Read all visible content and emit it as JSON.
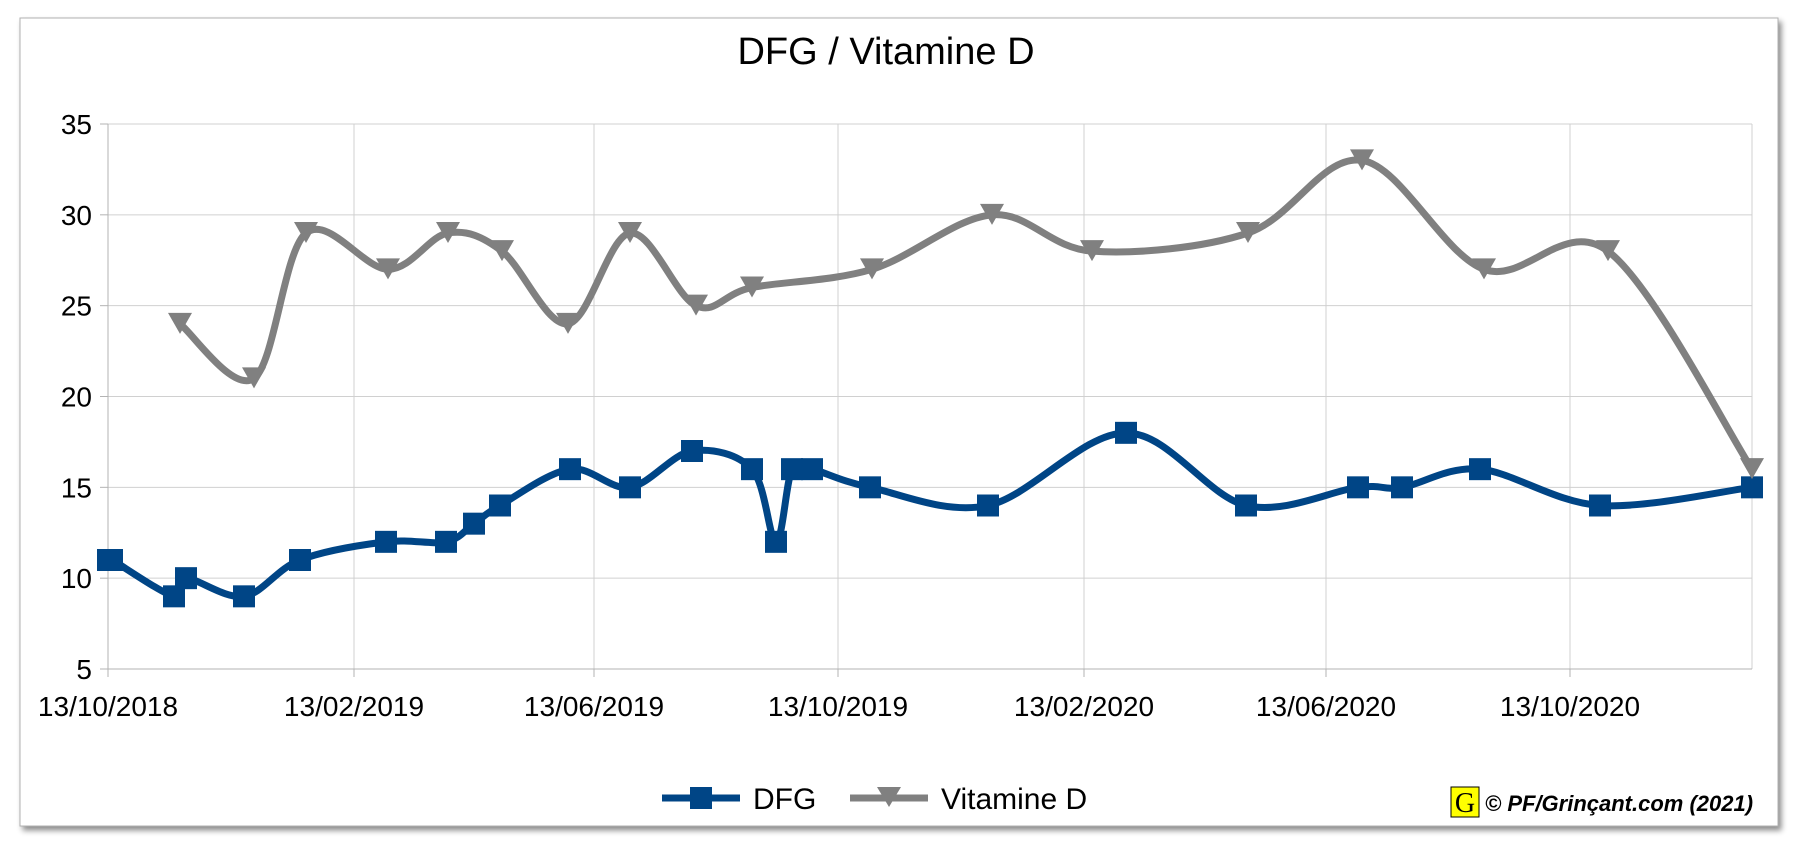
{
  "chart_data": {
    "type": "line",
    "title": "DFG / Vitamine D",
    "xlabel": "",
    "ylabel": "",
    "ylim": [
      5,
      35
    ],
    "yticks": [
      5,
      10,
      15,
      20,
      25,
      30,
      35
    ],
    "xlim": [
      "2018-10-13",
      "2021-01-12"
    ],
    "xticks": [
      "13/10/2018",
      "13/02/2019",
      "13/06/2019",
      "13/10/2019",
      "13/02/2020",
      "13/06/2020",
      "13/10/2020"
    ],
    "xtick_dates": [
      "2018-10-13",
      "2019-02-13",
      "2019-06-13",
      "2019-10-13",
      "2020-02-13",
      "2020-06-13",
      "2020-10-13"
    ],
    "grid": true,
    "smooth": true,
    "legend_position": "bottom-center",
    "series": [
      {
        "name": "DFG",
        "color": "#004586",
        "marker": "square",
        "points": [
          {
            "x": "2018-10-13",
            "y": 11
          },
          {
            "x": "2018-10-15",
            "y": 11
          },
          {
            "x": "2018-11-15",
            "y": 9
          },
          {
            "x": "2018-11-21",
            "y": 10
          },
          {
            "x": "2018-12-20",
            "y": 9
          },
          {
            "x": "2019-01-17",
            "y": 11
          },
          {
            "x": "2019-03-01",
            "y": 12
          },
          {
            "x": "2019-03-31",
            "y": 12
          },
          {
            "x": "2019-04-14",
            "y": 13
          },
          {
            "x": "2019-04-27",
            "y": 14
          },
          {
            "x": "2019-06-01",
            "y": 16
          },
          {
            "x": "2019-07-01",
            "y": 15
          },
          {
            "x": "2019-08-01",
            "y": 17
          },
          {
            "x": "2019-08-31",
            "y": 16
          },
          {
            "x": "2019-09-12",
            "y": 12
          },
          {
            "x": "2019-09-20",
            "y": 16
          },
          {
            "x": "2019-09-30",
            "y": 16
          },
          {
            "x": "2019-10-29",
            "y": 15
          },
          {
            "x": "2019-12-27",
            "y": 14
          },
          {
            "x": "2020-03-05",
            "y": 18
          },
          {
            "x": "2020-05-04",
            "y": 14
          },
          {
            "x": "2020-06-29",
            "y": 15
          },
          {
            "x": "2020-07-21",
            "y": 15
          },
          {
            "x": "2020-08-29",
            "y": 16
          },
          {
            "x": "2020-10-28",
            "y": 14
          },
          {
            "x": "2021-01-12",
            "y": 15
          }
        ]
      },
      {
        "name": "Vitamine D",
        "color": "#808080",
        "marker": "triangle-down",
        "points": [
          {
            "x": "2018-11-18",
            "y": 24
          },
          {
            "x": "2018-12-25",
            "y": 21
          },
          {
            "x": "2019-01-20",
            "y": 29
          },
          {
            "x": "2019-03-02",
            "y": 27
          },
          {
            "x": "2019-04-01",
            "y": 29
          },
          {
            "x": "2019-04-28",
            "y": 28
          },
          {
            "x": "2019-05-31",
            "y": 24
          },
          {
            "x": "2019-07-01",
            "y": 29
          },
          {
            "x": "2019-08-03",
            "y": 25
          },
          {
            "x": "2019-08-31",
            "y": 26
          },
          {
            "x": "2019-10-30",
            "y": 27
          },
          {
            "x": "2019-12-29",
            "y": 30
          },
          {
            "x": "2020-02-17",
            "y": 28
          },
          {
            "x": "2020-05-05",
            "y": 29
          },
          {
            "x": "2020-07-01",
            "y": 33
          },
          {
            "x": "2020-08-31",
            "y": 27
          },
          {
            "x": "2020-11-01",
            "y": 28
          },
          {
            "x": "2021-01-12",
            "y": 16
          }
        ]
      }
    ]
  },
  "watermark": {
    "logo_letter": "G",
    "text": "© PF/Grinçant.com (2021)"
  }
}
